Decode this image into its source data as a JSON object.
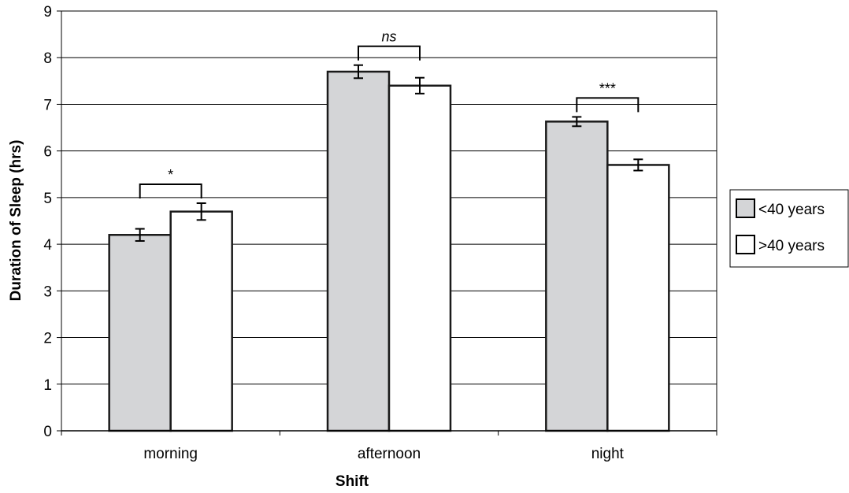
{
  "chart_data": {
    "type": "bar",
    "title": "",
    "xlabel": "Shift",
    "ylabel": "Duration of Sleep (hrs)",
    "categories": [
      "morning",
      "afternoon",
      "night"
    ],
    "ylim": [
      0,
      9
    ],
    "yticks": [
      0,
      1,
      2,
      3,
      4,
      5,
      6,
      7,
      8,
      9
    ],
    "grid": "horizontal",
    "legend_position": "right",
    "series": [
      {
        "name": "<40 years",
        "color": "#d4d5d7",
        "values": [
          4.2,
          7.7,
          6.63
        ],
        "errors": [
          0.13,
          0.14,
          0.1
        ]
      },
      {
        "name": ">40 years",
        "color": "#ffffff",
        "values": [
          4.7,
          7.4,
          5.7
        ],
        "errors": [
          0.18,
          0.17,
          0.12
        ]
      }
    ],
    "annotations": [
      {
        "category": "morning",
        "label": "*",
        "italic": false
      },
      {
        "category": "afternoon",
        "label": "ns",
        "italic": true
      },
      {
        "category": "night",
        "label": "***",
        "italic": false
      }
    ]
  }
}
